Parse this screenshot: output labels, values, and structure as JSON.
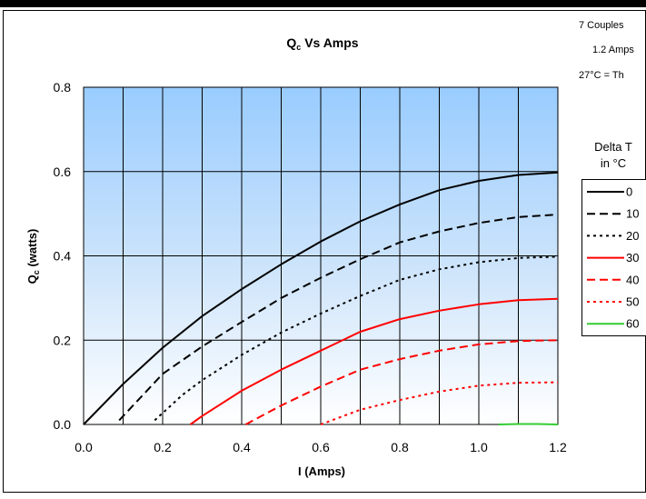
{
  "notes": [
    "7 Couples",
    "1.2 Amps",
    "27°C = Th"
  ],
  "chart_data": {
    "type": "line",
    "title_main": "Q",
    "title_sub": "c",
    "title_rest": " Vs Amps",
    "xlabel": "I (Amps)",
    "ylabel_main": "Q",
    "ylabel_sub": "c",
    "ylabel_rest": " (watts)",
    "xlim": [
      0.0,
      1.2
    ],
    "ylim": [
      0.0,
      0.8
    ],
    "xticks": [
      "0.0",
      "0.2",
      "0.4",
      "0.6",
      "0.8",
      "1.0",
      "1.2"
    ],
    "yticks": [
      "0.0",
      "0.2",
      "0.4",
      "0.6",
      "0.8"
    ],
    "grid": true,
    "legend_title": [
      "Delta T",
      "in °C"
    ],
    "legend_position": "right",
    "series": [
      {
        "name": "0",
        "color": "#000000",
        "dash": "solid",
        "x": [
          0.0,
          0.1,
          0.2,
          0.3,
          0.4,
          0.5,
          0.6,
          0.7,
          0.8,
          0.9,
          1.0,
          1.1,
          1.2
        ],
        "y": [
          0.0,
          0.096,
          0.182,
          0.257,
          0.321,
          0.38,
          0.434,
          0.482,
          0.522,
          0.556,
          0.578,
          0.592,
          0.598
        ]
      },
      {
        "name": "10",
        "color": "#000000",
        "dash": "long",
        "x": [
          0.09,
          0.2,
          0.3,
          0.4,
          0.5,
          0.6,
          0.7,
          0.8,
          0.9,
          1.0,
          1.1,
          1.2
        ],
        "y": [
          0.01,
          0.12,
          0.185,
          0.243,
          0.3,
          0.348,
          0.392,
          0.432,
          0.458,
          0.478,
          0.492,
          0.498
        ]
      },
      {
        "name": "20",
        "color": "#000000",
        "dash": "dot",
        "x": [
          0.18,
          0.25,
          0.3,
          0.4,
          0.5,
          0.6,
          0.7,
          0.8,
          0.9,
          1.0,
          1.1,
          1.2
        ],
        "y": [
          0.01,
          0.07,
          0.105,
          0.165,
          0.218,
          0.263,
          0.305,
          0.343,
          0.368,
          0.385,
          0.395,
          0.398
        ]
      },
      {
        "name": "30",
        "color": "#ff0000",
        "dash": "solid",
        "x": [
          0.27,
          0.3,
          0.4,
          0.5,
          0.6,
          0.7,
          0.8,
          0.9,
          1.0,
          1.1,
          1.2
        ],
        "y": [
          0.0,
          0.02,
          0.08,
          0.13,
          0.175,
          0.22,
          0.25,
          0.27,
          0.285,
          0.295,
          0.298
        ]
      },
      {
        "name": "40",
        "color": "#ff0000",
        "dash": "long",
        "x": [
          0.41,
          0.5,
          0.6,
          0.7,
          0.8,
          0.9,
          1.0,
          1.1,
          1.2
        ],
        "y": [
          0.0,
          0.045,
          0.09,
          0.13,
          0.155,
          0.175,
          0.19,
          0.198,
          0.2
        ]
      },
      {
        "name": "50",
        "color": "#ff0000",
        "dash": "dot",
        "x": [
          0.6,
          0.7,
          0.8,
          0.9,
          1.0,
          1.1,
          1.2
        ],
        "y": [
          0.0,
          0.035,
          0.058,
          0.078,
          0.092,
          0.099,
          0.1
        ]
      },
      {
        "name": "60",
        "color": "#33cc33",
        "dash": "solid",
        "x": [
          1.05,
          1.1,
          1.15,
          1.2
        ],
        "y": [
          0.0,
          0.001,
          0.001,
          0.0
        ]
      }
    ]
  }
}
